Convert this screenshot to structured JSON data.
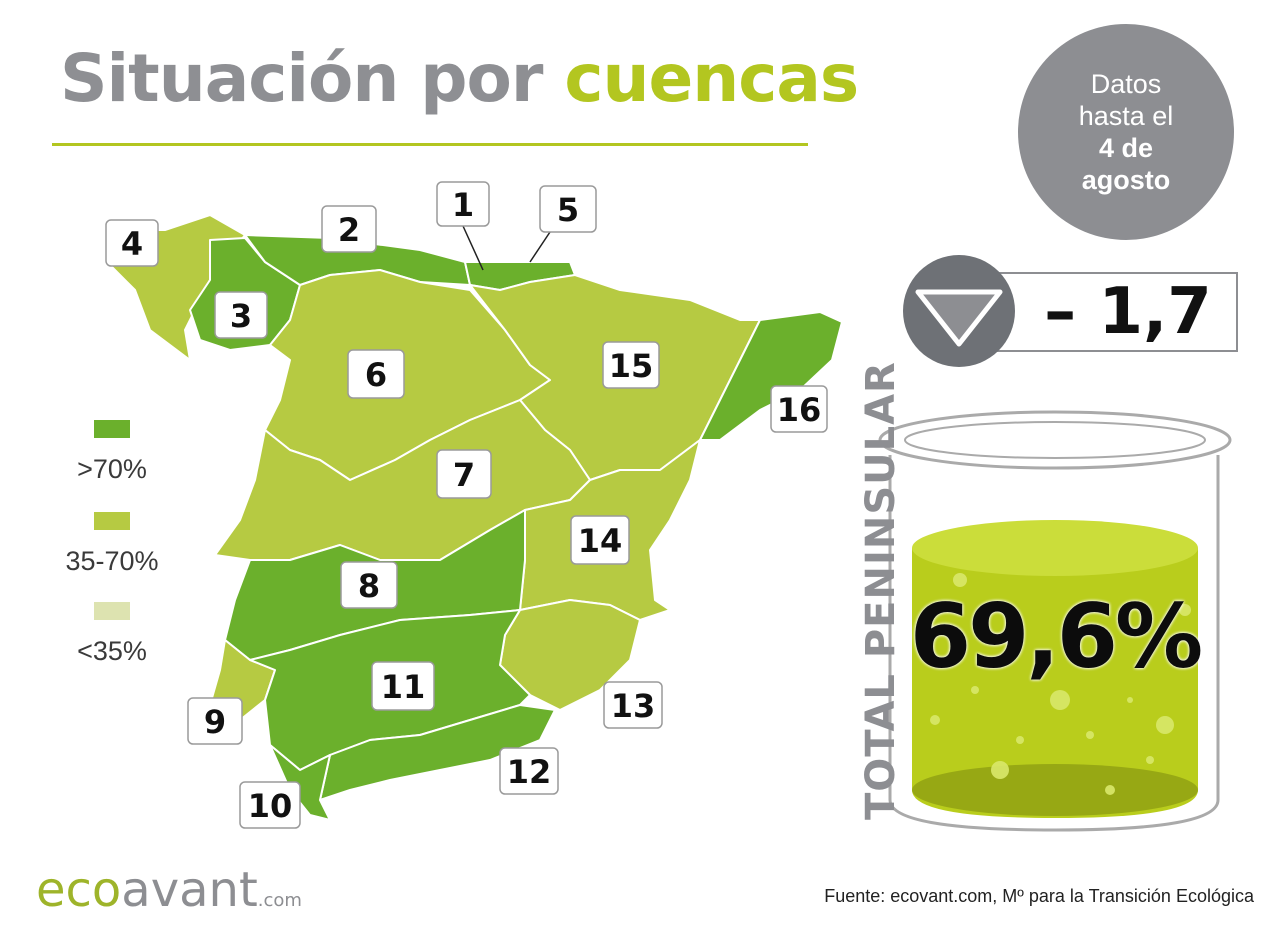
{
  "title": {
    "part1": "Situación por ",
    "part2": "cuencas"
  },
  "date_badge": {
    "line1": "Datos",
    "line2": "hasta el",
    "line3": "4 de",
    "line4": "agosto"
  },
  "legend": [
    {
      "label": ">70%",
      "color": "#6bb02c"
    },
    {
      "label": "35-70%",
      "color": "#b6ca42"
    },
    {
      "label": "<35%",
      "color": "#dde3b0"
    }
  ],
  "basins": [
    "1",
    "2",
    "3",
    "4",
    "5",
    "6",
    "7",
    "8",
    "9",
    "10",
    "11",
    "12",
    "13",
    "14",
    "15",
    "16"
  ],
  "weekly_change": {
    "value": "– 1,7",
    "icon": "down-triangle-icon"
  },
  "total": {
    "label": "TOTAL PENINSULAR",
    "value": "69,6%"
  },
  "logo": {
    "eco": "eco",
    "avant": "avant",
    "com": ".com"
  },
  "source": "Fuente: ecovant.com, Mº para la Transición Ecológica"
}
